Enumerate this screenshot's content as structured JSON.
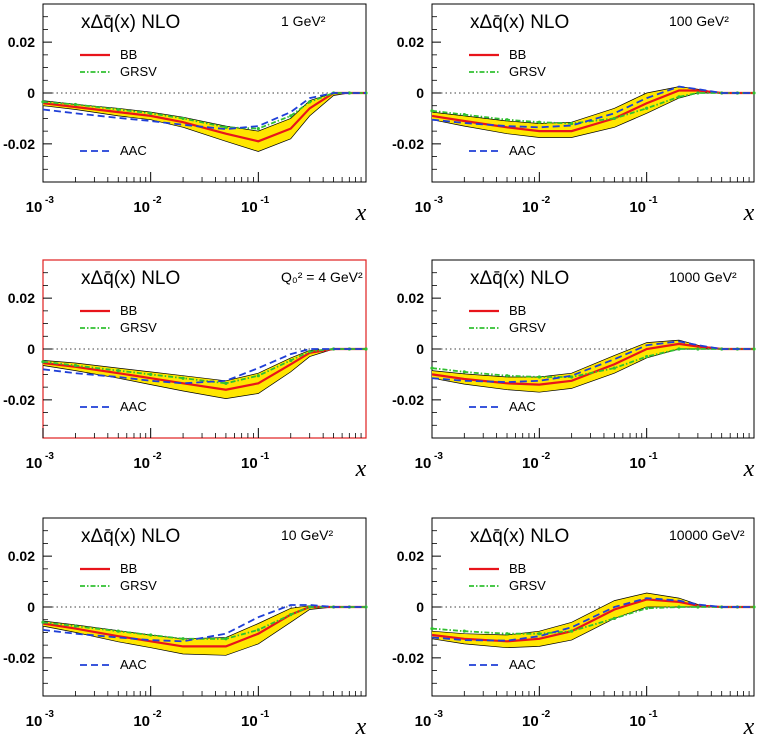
{
  "chart_data": [
    {
      "type": "line",
      "title": "xΔq̄(x)  NLO",
      "q2_label": "1 GeV²",
      "xlabel": "x",
      "xscale": "log",
      "xlim": [
        0.001,
        1
      ],
      "ylim": [
        -0.035,
        0.035
      ],
      "yticks": [
        "0.02",
        "0",
        "-0.02"
      ],
      "xticks": [
        {
          "base": "10",
          "exp": "-3"
        },
        {
          "base": "10",
          "exp": "-2"
        },
        {
          "base": "10",
          "exp": "-1"
        }
      ],
      "legend": [
        "BB",
        "GRSV",
        "AAC"
      ],
      "highlighted": false,
      "series": [
        {
          "name": "BB",
          "color": "#e8141b",
          "x": [
            0.001,
            0.002,
            0.005,
            0.01,
            0.02,
            0.05,
            0.1,
            0.2,
            0.3,
            0.5,
            0.7,
            1.0
          ],
          "y": [
            -0.004,
            -0.0055,
            -0.0075,
            -0.009,
            -0.0115,
            -0.016,
            -0.019,
            -0.014,
            -0.006,
            0.0,
            0.0,
            0.0
          ],
          "band_lo": [
            -0.003,
            -0.0045,
            -0.006,
            -0.0075,
            -0.0095,
            -0.013,
            -0.015,
            -0.01,
            -0.003,
            0.0,
            0.0,
            0.0
          ],
          "band_hi": [
            -0.005,
            -0.0065,
            -0.009,
            -0.0105,
            -0.0135,
            -0.019,
            -0.023,
            -0.018,
            -0.009,
            -0.001,
            0.0,
            0.0
          ]
        },
        {
          "name": "GRSV",
          "color": "#30c030",
          "x": [
            0.001,
            0.002,
            0.005,
            0.01,
            0.02,
            0.05,
            0.1,
            0.2,
            0.3,
            0.5,
            0.7,
            1.0
          ],
          "y": [
            -0.0035,
            -0.0045,
            -0.0065,
            -0.008,
            -0.01,
            -0.0135,
            -0.014,
            -0.009,
            -0.0035,
            0.0,
            0.0,
            0.0
          ]
        },
        {
          "name": "AAC",
          "color": "#1f3fd8",
          "x": [
            0.001,
            0.002,
            0.005,
            0.01,
            0.02,
            0.05,
            0.1,
            0.2,
            0.3,
            0.5,
            0.7,
            1.0
          ],
          "y": [
            -0.0065,
            -0.008,
            -0.0098,
            -0.011,
            -0.0125,
            -0.0142,
            -0.013,
            -0.0075,
            -0.002,
            0.0,
            0.0,
            0.0
          ]
        }
      ]
    },
    {
      "type": "line",
      "title": "xΔq̄(x)  NLO",
      "q2_label": "100 GeV²",
      "xlabel": "x",
      "xscale": "log",
      "xlim": [
        0.001,
        1
      ],
      "ylim": [
        -0.035,
        0.035
      ],
      "yticks": [
        "0.02",
        "0",
        "-0.02"
      ],
      "xticks": [
        {
          "base": "10",
          "exp": "-3"
        },
        {
          "base": "10",
          "exp": "-2"
        },
        {
          "base": "10",
          "exp": "-1"
        }
      ],
      "legend": [
        "BB",
        "GRSV",
        "AAC"
      ],
      "highlighted": false,
      "series": [
        {
          "name": "BB",
          "color": "#e8141b",
          "x": [
            0.001,
            0.002,
            0.005,
            0.01,
            0.02,
            0.05,
            0.1,
            0.2,
            0.3,
            0.5,
            0.7,
            1.0
          ],
          "y": [
            -0.009,
            -0.011,
            -0.0135,
            -0.015,
            -0.015,
            -0.01,
            -0.004,
            0.001,
            0.001,
            0.0,
            0.0,
            0.0
          ],
          "band_lo": [
            -0.0075,
            -0.009,
            -0.011,
            -0.012,
            -0.0115,
            -0.006,
            0.0,
            0.0025,
            0.0015,
            0.0,
            0.0,
            0.0
          ],
          "band_hi": [
            -0.0105,
            -0.013,
            -0.016,
            -0.0175,
            -0.0175,
            -0.0135,
            -0.008,
            -0.002,
            0.0,
            0.0,
            0.0,
            0.0
          ]
        },
        {
          "name": "GRSV",
          "color": "#30c030",
          "x": [
            0.001,
            0.002,
            0.005,
            0.01,
            0.02,
            0.05,
            0.1,
            0.2,
            0.3,
            0.5,
            0.7,
            1.0
          ],
          "y": [
            -0.007,
            -0.0085,
            -0.0105,
            -0.0115,
            -0.012,
            -0.01,
            -0.006,
            -0.0015,
            0.0,
            0.0,
            0.0,
            0.0
          ]
        },
        {
          "name": "AAC",
          "color": "#1f3fd8",
          "x": [
            0.001,
            0.002,
            0.005,
            0.01,
            0.02,
            0.05,
            0.1,
            0.2,
            0.3,
            0.5,
            0.7,
            1.0
          ],
          "y": [
            -0.0105,
            -0.0118,
            -0.013,
            -0.0135,
            -0.0128,
            -0.008,
            -0.002,
            0.0025,
            0.0015,
            0.0,
            0.0,
            0.0
          ]
        }
      ]
    },
    {
      "type": "line",
      "title": "xΔq̄(x)  NLO",
      "q2_label": "Q₀² = 4 GeV²",
      "xlabel": "x",
      "xscale": "log",
      "xlim": [
        0.001,
        1
      ],
      "ylim": [
        -0.035,
        0.035
      ],
      "yticks": [
        "0.02",
        "0",
        "-0.02"
      ],
      "xticks": [
        {
          "base": "10",
          "exp": "-3"
        },
        {
          "base": "10",
          "exp": "-2"
        },
        {
          "base": "10",
          "exp": "-1"
        }
      ],
      "legend": [
        "BB",
        "GRSV",
        "AAC"
      ],
      "highlighted": true,
      "series": [
        {
          "name": "BB",
          "color": "#e8141b",
          "x": [
            0.001,
            0.002,
            0.005,
            0.01,
            0.02,
            0.05,
            0.1,
            0.2,
            0.3,
            0.5,
            0.7,
            1.0
          ],
          "y": [
            -0.0055,
            -0.007,
            -0.0095,
            -0.0115,
            -0.0135,
            -0.016,
            -0.0135,
            -0.006,
            -0.0015,
            0.0,
            0.0,
            0.0
          ],
          "band_lo": [
            -0.0045,
            -0.0055,
            -0.0075,
            -0.009,
            -0.0105,
            -0.0125,
            -0.0095,
            -0.0035,
            -0.0005,
            0.0,
            0.0,
            0.0
          ],
          "band_hi": [
            -0.0065,
            -0.0085,
            -0.0115,
            -0.014,
            -0.0165,
            -0.0195,
            -0.0175,
            -0.009,
            -0.003,
            0.0,
            0.0,
            0.0
          ]
        },
        {
          "name": "GRSV",
          "color": "#30c030",
          "x": [
            0.001,
            0.002,
            0.005,
            0.01,
            0.02,
            0.05,
            0.1,
            0.2,
            0.3,
            0.5,
            0.7,
            1.0
          ],
          "y": [
            -0.005,
            -0.0065,
            -0.0085,
            -0.01,
            -0.0115,
            -0.0135,
            -0.0105,
            -0.0045,
            -0.001,
            0.0,
            0.0,
            0.0
          ]
        },
        {
          "name": "AAC",
          "color": "#1f3fd8",
          "x": [
            0.001,
            0.002,
            0.005,
            0.01,
            0.02,
            0.05,
            0.1,
            0.2,
            0.3,
            0.5,
            0.7,
            1.0
          ],
          "y": [
            -0.008,
            -0.0095,
            -0.011,
            -0.0125,
            -0.0135,
            -0.0125,
            -0.0075,
            -0.002,
            0.0,
            0.0,
            0.0,
            0.0
          ]
        }
      ]
    },
    {
      "type": "line",
      "title": "xΔq̄(x)  NLO",
      "q2_label": "1000 GeV²",
      "xlabel": "x",
      "xscale": "log",
      "xlim": [
        0.001,
        1
      ],
      "ylim": [
        -0.035,
        0.035
      ],
      "yticks": [
        "0.02",
        "0",
        "-0.02"
      ],
      "xticks": [
        {
          "base": "10",
          "exp": "-3"
        },
        {
          "base": "10",
          "exp": "-2"
        },
        {
          "base": "10",
          "exp": "-1"
        }
      ],
      "legend": [
        "BB",
        "GRSV",
        "AAC"
      ],
      "highlighted": false,
      "series": [
        {
          "name": "BB",
          "color": "#e8141b",
          "x": [
            0.001,
            0.002,
            0.005,
            0.01,
            0.02,
            0.05,
            0.1,
            0.2,
            0.3,
            0.5,
            0.7,
            1.0
          ],
          "y": [
            -0.01,
            -0.0118,
            -0.0135,
            -0.014,
            -0.0125,
            -0.006,
            0.0,
            0.002,
            0.001,
            0.0,
            0.0,
            0.0
          ],
          "band_lo": [
            -0.0085,
            -0.0098,
            -0.011,
            -0.011,
            -0.0095,
            -0.0025,
            0.0025,
            0.0035,
            0.0015,
            0.0,
            0.0,
            0.0
          ],
          "band_hi": [
            -0.0115,
            -0.0138,
            -0.016,
            -0.017,
            -0.0155,
            -0.0095,
            -0.0035,
            0.0,
            0.0,
            0.0,
            0.0,
            0.0
          ]
        },
        {
          "name": "GRSV",
          "color": "#30c030",
          "x": [
            0.001,
            0.002,
            0.005,
            0.01,
            0.02,
            0.05,
            0.1,
            0.2,
            0.3,
            0.5,
            0.7,
            1.0
          ],
          "y": [
            -0.0075,
            -0.009,
            -0.0105,
            -0.011,
            -0.011,
            -0.0075,
            -0.003,
            0.0,
            0.0,
            0.0,
            0.0,
            0.0
          ]
        },
        {
          "name": "AAC",
          "color": "#1f3fd8",
          "x": [
            0.001,
            0.002,
            0.005,
            0.01,
            0.02,
            0.05,
            0.1,
            0.2,
            0.3,
            0.5,
            0.7,
            1.0
          ],
          "y": [
            -0.0115,
            -0.0125,
            -0.013,
            -0.0125,
            -0.0105,
            -0.004,
            0.0015,
            0.003,
            0.0015,
            0.0,
            0.0,
            0.0
          ]
        }
      ]
    },
    {
      "type": "line",
      "title": "xΔq̄(x)  NLO",
      "q2_label": "10 GeV²",
      "xlabel": "x",
      "xscale": "log",
      "xlim": [
        0.001,
        1
      ],
      "ylim": [
        -0.035,
        0.035
      ],
      "yticks": [
        "0.02",
        "0",
        "-0.02"
      ],
      "xticks": [
        {
          "base": "10",
          "exp": "-3"
        },
        {
          "base": "10",
          "exp": "-2"
        },
        {
          "base": "10",
          "exp": "-1"
        }
      ],
      "legend": [
        "BB",
        "GRSV",
        "AAC"
      ],
      "highlighted": false,
      "series": [
        {
          "name": "BB",
          "color": "#e8141b",
          "x": [
            0.001,
            0.002,
            0.005,
            0.01,
            0.02,
            0.05,
            0.1,
            0.2,
            0.3,
            0.5,
            0.7,
            1.0
          ],
          "y": [
            -0.0065,
            -0.0085,
            -0.0115,
            -0.0135,
            -0.0155,
            -0.0155,
            -0.0105,
            -0.003,
            0.0,
            0.0,
            0.0,
            0.0
          ],
          "band_lo": [
            -0.0055,
            -0.007,
            -0.0093,
            -0.011,
            -0.0125,
            -0.012,
            -0.0065,
            -0.0005,
            0.0005,
            0.0,
            0.0,
            0.0
          ],
          "band_hi": [
            -0.0075,
            -0.01,
            -0.0137,
            -0.016,
            -0.0185,
            -0.019,
            -0.0145,
            -0.006,
            -0.001,
            0.0,
            0.0,
            0.0
          ]
        },
        {
          "name": "GRSV",
          "color": "#30c030",
          "x": [
            0.001,
            0.002,
            0.005,
            0.01,
            0.02,
            0.05,
            0.1,
            0.2,
            0.3,
            0.5,
            0.7,
            1.0
          ],
          "y": [
            -0.006,
            -0.0075,
            -0.0095,
            -0.011,
            -0.0125,
            -0.0125,
            -0.009,
            -0.003,
            0.0,
            0.0,
            0.0,
            0.0
          ]
        },
        {
          "name": "AAC",
          "color": "#1f3fd8",
          "x": [
            0.001,
            0.002,
            0.005,
            0.01,
            0.02,
            0.05,
            0.1,
            0.2,
            0.3,
            0.5,
            0.7,
            1.0
          ],
          "y": [
            -0.009,
            -0.0105,
            -0.012,
            -0.013,
            -0.0135,
            -0.0105,
            -0.004,
            0.0008,
            0.0008,
            0.0,
            0.0,
            0.0
          ]
        }
      ]
    },
    {
      "type": "line",
      "title": "xΔq̄(x)  NLO",
      "q2_label": "10000 GeV²",
      "xlabel": "x",
      "xscale": "log",
      "xlim": [
        0.001,
        1
      ],
      "ylim": [
        -0.035,
        0.035
      ],
      "yticks": [
        "0.02",
        "0",
        "-0.02"
      ],
      "xticks": [
        {
          "base": "10",
          "exp": "-3"
        },
        {
          "base": "10",
          "exp": "-2"
        },
        {
          "base": "10",
          "exp": "-1"
        }
      ],
      "legend": [
        "BB",
        "GRSV",
        "AAC"
      ],
      "highlighted": false,
      "series": [
        {
          "name": "BB",
          "color": "#e8141b",
          "x": [
            0.001,
            0.002,
            0.005,
            0.01,
            0.02,
            0.05,
            0.1,
            0.2,
            0.3,
            0.5,
            0.7,
            1.0
          ],
          "y": [
            -0.011,
            -0.0125,
            -0.0135,
            -0.0125,
            -0.0095,
            -0.001,
            0.003,
            0.002,
            0.0005,
            0.0,
            0.0,
            0.0
          ],
          "band_lo": [
            -0.0095,
            -0.0105,
            -0.011,
            -0.0095,
            -0.006,
            0.0025,
            0.0055,
            0.0035,
            0.001,
            0.0,
            0.0,
            0.0
          ],
          "band_hi": [
            -0.0125,
            -0.0145,
            -0.016,
            -0.0155,
            -0.013,
            -0.0045,
            0.0,
            0.0,
            0.0,
            0.0,
            0.0,
            0.0
          ]
        },
        {
          "name": "GRSV",
          "color": "#30c030",
          "x": [
            0.001,
            0.002,
            0.005,
            0.01,
            0.02,
            0.05,
            0.1,
            0.2,
            0.3,
            0.5,
            0.7,
            1.0
          ],
          "y": [
            -0.0085,
            -0.0095,
            -0.0105,
            -0.0105,
            -0.0095,
            -0.0045,
            -0.0005,
            0.0,
            0.0,
            0.0,
            0.0,
            0.0
          ]
        },
        {
          "name": "AAC",
          "color": "#1f3fd8",
          "x": [
            0.001,
            0.002,
            0.005,
            0.01,
            0.02,
            0.05,
            0.1,
            0.2,
            0.3,
            0.5,
            0.7,
            1.0
          ],
          "y": [
            -0.012,
            -0.013,
            -0.0132,
            -0.0115,
            -0.008,
            0.0,
            0.0035,
            0.0025,
            0.001,
            0.0,
            0.0,
            0.0
          ]
        }
      ]
    }
  ],
  "colors": {
    "band_fill": "#ffe600",
    "band_edge": "#000000",
    "highlight_frame": "#e02020"
  }
}
